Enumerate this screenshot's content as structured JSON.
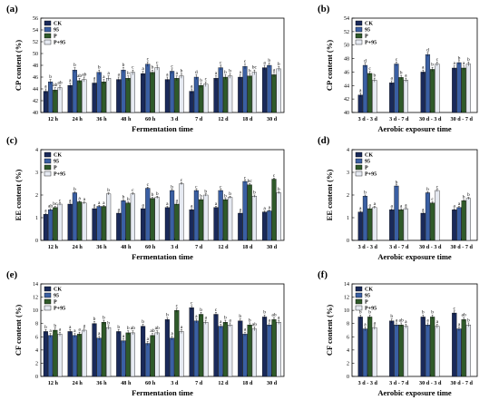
{
  "colors": {
    "CK": "#1a2a5a",
    "95": "#3a5fa3",
    "P": "#2f5a2a",
    "P+95": "#e6eaf2",
    "axis": "#000000"
  },
  "chart_data": [
    {
      "id": "a",
      "letter": "(a)",
      "type": "bar",
      "ylabel": "CP content (%)",
      "xlabel": "Fermentation time",
      "ylim": [
        40,
        56
      ],
      "yticks": [
        40,
        42,
        44,
        46,
        48,
        50,
        52,
        54,
        56
      ],
      "legend": [
        "CK",
        "95",
        "P",
        "P+95"
      ],
      "legend_position": "top-left",
      "categories": [
        "12 h",
        "24 h",
        "36 h",
        "48 h",
        "60 h",
        "3 d",
        "7 d",
        "12 d",
        "18 d",
        "30 d"
      ],
      "series": [
        {
          "name": "CK",
          "values": [
            43.6,
            44.6,
            45.0,
            45.6,
            46.6,
            45.6,
            43.6,
            45.8,
            46.0,
            47.6
          ],
          "errors": [
            0.4,
            0.4,
            0.4,
            0.4,
            0.4,
            0.4,
            0.4,
            0.4,
            0.4,
            0.4
          ],
          "letters": [
            "a",
            "a",
            "a",
            "a",
            "a",
            "a",
            "a",
            "a",
            "a",
            "a"
          ]
        },
        {
          "name": "95",
          "values": [
            45.2,
            47.2,
            46.8,
            47.2,
            48.2,
            47.0,
            46.0,
            47.6,
            47.8,
            48.0
          ],
          "errors": [
            0.4,
            0.4,
            0.4,
            0.4,
            0.4,
            0.4,
            0.4,
            0.4,
            0.4,
            0.4
          ],
          "letters": [
            "b",
            "b",
            "b",
            "b",
            "c",
            "c",
            "d",
            "c",
            "c",
            "b"
          ]
        },
        {
          "name": "P",
          "values": [
            43.8,
            45.4,
            45.2,
            45.8,
            46.8,
            45.8,
            44.6,
            46.0,
            46.2,
            46.4
          ],
          "errors": [
            0.4,
            0.4,
            0.4,
            0.4,
            0.4,
            0.4,
            0.4,
            0.4,
            0.4,
            0.4
          ],
          "letters": [
            "ab",
            "ab",
            "a",
            "b",
            "b",
            "a",
            "b",
            "b",
            "b",
            "a"
          ]
        },
        {
          "name": "P+95",
          "values": [
            44.2,
            45.6,
            45.8,
            46.8,
            47.6,
            46.2,
            44.8,
            46.2,
            46.8,
            47.4
          ],
          "errors": [
            0.4,
            0.4,
            0.4,
            0.4,
            0.4,
            0.4,
            0.4,
            0.4,
            0.4,
            0.4
          ],
          "letters": [
            "ab",
            "ab",
            "a",
            "c",
            "c",
            "b",
            "c",
            "b",
            "bc",
            "b"
          ]
        }
      ]
    },
    {
      "id": "b",
      "letter": "(b)",
      "type": "bar",
      "ylabel": "CP content (%)",
      "xlabel": "Aerobic exposure time",
      "ylim": [
        40,
        54
      ],
      "yticks": [
        40,
        42,
        44,
        46,
        48,
        50,
        52,
        54
      ],
      "legend": [
        "CK",
        "95",
        "P",
        "P+95"
      ],
      "legend_position": "top-left",
      "categories": [
        "3 d - 3 d",
        "3 d - 7 d",
        "30 d - 3 d",
        "30 d - 7 d"
      ],
      "series": [
        {
          "name": "CK",
          "values": [
            42.6,
            44.4,
            46.0,
            46.6
          ],
          "errors": [
            0.3,
            0.3,
            0.3,
            0.3
          ],
          "letters": [
            "a",
            "a",
            "a",
            "a"
          ]
        },
        {
          "name": "95",
          "values": [
            47.0,
            47.2,
            48.6,
            47.4
          ],
          "errors": [
            0.3,
            0.3,
            0.3,
            0.3
          ],
          "letters": [
            "d",
            "c",
            "d",
            "b"
          ]
        },
        {
          "name": "P",
          "values": [
            45.8,
            45.2,
            46.4,
            46.6
          ],
          "errors": [
            0.3,
            0.3,
            0.3,
            0.3
          ],
          "letters": [
            "c",
            "b",
            "b",
            "a"
          ]
        },
        {
          "name": "P+95",
          "values": [
            44.8,
            44.8,
            47.2,
            47.2
          ],
          "errors": [
            0.3,
            0.3,
            0.3,
            0.3
          ],
          "letters": [
            "b",
            "a",
            "c",
            "b"
          ]
        }
      ]
    },
    {
      "id": "c",
      "letter": "(c)",
      "type": "bar",
      "ylabel": "EE content (%)",
      "xlabel": "Fermentation time",
      "ylim": [
        0,
        4
      ],
      "yticks": [
        0,
        1,
        2,
        3,
        4
      ],
      "legend": [
        "CK",
        "95",
        "P",
        "P+95"
      ],
      "legend_position": "top-left",
      "categories": [
        "12 h",
        "24 h",
        "36 h",
        "48 h",
        "60 h",
        "3 d",
        "7 d",
        "12 d",
        "18 d",
        "30 d"
      ],
      "series": [
        {
          "name": "CK",
          "values": [
            1.15,
            1.6,
            1.4,
            1.2,
            1.4,
            1.45,
            1.35,
            1.45,
            1.2,
            1.25
          ],
          "errors": [
            0.05,
            0.05,
            0.05,
            0.05,
            0.05,
            0.05,
            0.05,
            0.05,
            0.05,
            0.05
          ],
          "letters": [
            "a",
            "a",
            "a",
            "a",
            "a",
            "a",
            "a",
            "a",
            "a",
            "a"
          ]
        },
        {
          "name": "95",
          "values": [
            1.35,
            2.1,
            1.5,
            1.75,
            2.3,
            2.2,
            2.2,
            2.2,
            2.6,
            1.3
          ],
          "errors": [
            0.05,
            0.05,
            0.05,
            0.05,
            0.05,
            0.05,
            0.05,
            0.05,
            0.05,
            0.05
          ],
          "letters": [
            "ab",
            "b",
            "a",
            "b",
            "c",
            "b",
            "c",
            "c",
            "c",
            "a"
          ]
        },
        {
          "name": "P",
          "values": [
            1.45,
            1.7,
            1.5,
            1.65,
            1.85,
            1.6,
            1.8,
            1.8,
            2.45,
            2.7
          ],
          "errors": [
            0.05,
            0.05,
            0.05,
            0.05,
            0.05,
            0.05,
            0.05,
            0.05,
            0.05,
            0.05
          ],
          "letters": [
            "bc",
            "a",
            "a",
            "b",
            "b",
            "a",
            "b",
            "b",
            "bc",
            "c"
          ]
        },
        {
          "name": "P+95",
          "values": [
            1.6,
            1.65,
            2.05,
            2.05,
            1.9,
            2.5,
            2.0,
            1.9,
            1.95,
            2.1
          ],
          "errors": [
            0.05,
            0.05,
            0.05,
            0.05,
            0.05,
            0.05,
            0.05,
            0.05,
            0.05,
            0.05
          ],
          "letters": [
            "c",
            "a",
            "b",
            "c",
            "b",
            "c",
            "b",
            "b",
            "b",
            "b"
          ]
        }
      ]
    },
    {
      "id": "d",
      "letter": "(d)",
      "type": "bar",
      "ylabel": "EE content (%)",
      "xlabel": "Aerobic exposure time",
      "ylim": [
        0,
        4
      ],
      "yticks": [
        0,
        1,
        2,
        3,
        4
      ],
      "legend": [
        "CK",
        "95",
        "P",
        "P+95"
      ],
      "legend_position": "top-left",
      "categories": [
        "3 d - 3 d",
        "3 d - 7 d",
        "30 d - 3 d",
        "30 d - 7 d"
      ],
      "series": [
        {
          "name": "CK",
          "values": [
            1.25,
            1.35,
            1.2,
            1.35
          ],
          "errors": [
            0.05,
            0.05,
            0.05,
            0.05
          ],
          "letters": [
            "a",
            "a",
            "a",
            "a"
          ]
        },
        {
          "name": "95",
          "values": [
            1.95,
            2.4,
            2.1,
            1.45
          ],
          "errors": [
            0.05,
            0.05,
            0.05,
            0.05
          ],
          "letters": [
            "b",
            "b",
            "b",
            "a"
          ]
        },
        {
          "name": "P",
          "values": [
            1.4,
            1.35,
            1.65,
            1.75
          ],
          "errors": [
            0.05,
            0.05,
            0.05,
            0.05
          ],
          "letters": [
            "a",
            "a",
            "c",
            "b"
          ]
        },
        {
          "name": "P+95",
          "values": [
            1.45,
            1.4,
            2.2,
            1.85
          ],
          "errors": [
            0.05,
            0.05,
            0.05,
            0.05
          ],
          "letters": [
            "a",
            "a",
            "c",
            "b"
          ]
        }
      ]
    },
    {
      "id": "e",
      "letter": "(e)",
      "type": "bar",
      "ylabel": "CF content (%)",
      "xlabel": "Fermentation time",
      "ylim": [
        0,
        14
      ],
      "yticks": [
        0,
        2,
        4,
        6,
        8,
        10,
        12,
        14
      ],
      "legend": [
        "CK",
        "95",
        "P",
        "P+95"
      ],
      "legend_position": "top-left",
      "categories": [
        "12 h",
        "24 h",
        "36 h",
        "48 h",
        "60 h",
        "3 d",
        "7 d",
        "12 d",
        "18 d",
        "30 d"
      ],
      "series": [
        {
          "name": "CK",
          "values": [
            6.8,
            6.8,
            8.0,
            6.8,
            7.6,
            8.6,
            10.4,
            9.4,
            8.4,
            9.0
          ],
          "errors": [
            0.3,
            0.3,
            0.3,
            0.3,
            0.3,
            0.3,
            0.3,
            0.3,
            0.3,
            0.3
          ],
          "letters": [
            "b",
            "a",
            "b",
            "b",
            "b",
            "b",
            "c",
            "c",
            "b",
            "b"
          ]
        },
        {
          "name": "95",
          "values": [
            6.2,
            6.2,
            5.8,
            5.4,
            5.0,
            5.8,
            8.4,
            7.6,
            6.4,
            7.8
          ],
          "errors": [
            0.3,
            0.3,
            0.3,
            0.3,
            0.3,
            0.3,
            0.3,
            0.3,
            0.3,
            0.3
          ],
          "letters": [
            "a",
            "a",
            "a",
            "a",
            "a",
            "a",
            "a",
            "a",
            "a",
            "a"
          ]
        },
        {
          "name": "P",
          "values": [
            7.0,
            6.4,
            8.2,
            6.6,
            6.2,
            10.0,
            9.4,
            8.2,
            7.8,
            8.6
          ],
          "errors": [
            0.3,
            0.3,
            0.3,
            0.3,
            0.3,
            0.3,
            0.3,
            0.3,
            0.3,
            0.3
          ],
          "letters": [
            "b",
            "a",
            "b",
            "b",
            "ab",
            "c",
            "b",
            "b",
            "b",
            "ab"
          ]
        },
        {
          "name": "P+95",
          "values": [
            6.4,
            7.0,
            7.4,
            6.6,
            6.6,
            6.8,
            8.2,
            7.8,
            7.2,
            8.2
          ],
          "errors": [
            0.3,
            0.3,
            0.3,
            0.3,
            0.3,
            0.3,
            0.3,
            0.3,
            0.3,
            0.3
          ],
          "letters": [
            "a",
            "a",
            "b",
            "ab",
            "ab",
            "a",
            "a",
            "a",
            "ab",
            "a"
          ]
        }
      ]
    },
    {
      "id": "f",
      "letter": "(f)",
      "type": "bar",
      "ylabel": "CF content (%)",
      "xlabel": "Aerobic exposure time",
      "ylim": [
        0,
        14
      ],
      "yticks": [
        0,
        2,
        4,
        6,
        8,
        10,
        12,
        14
      ],
      "legend": [
        "CK",
        "95",
        "P",
        "P+95"
      ],
      "legend_position": "top-left",
      "categories": [
        "3 d - 3 d",
        "3 d - 7 d",
        "30 d - 3 d",
        "30 d - 7 d"
      ],
      "series": [
        {
          "name": "CK",
          "values": [
            9.0,
            8.4,
            9.0,
            9.6
          ],
          "errors": [
            0.3,
            0.3,
            0.3,
            0.3
          ],
          "letters": [
            "b",
            "b",
            "b",
            "c"
          ]
        },
        {
          "name": "95",
          "values": [
            7.2,
            7.8,
            7.8,
            7.2
          ],
          "errors": [
            0.3,
            0.3,
            0.3,
            0.3
          ],
          "letters": [
            "a",
            "a",
            "a",
            "a"
          ]
        },
        {
          "name": "P",
          "values": [
            9.0,
            7.8,
            9.0,
            8.6
          ],
          "errors": [
            0.3,
            0.3,
            0.3,
            0.3
          ],
          "letters": [
            "b",
            "ab",
            "b",
            "ab"
          ]
        },
        {
          "name": "P+95",
          "values": [
            7.4,
            7.6,
            7.6,
            7.8
          ],
          "errors": [
            0.3,
            0.3,
            0.3,
            0.3
          ],
          "letters": [
            "a",
            "a",
            "a",
            "b"
          ]
        }
      ]
    }
  ]
}
